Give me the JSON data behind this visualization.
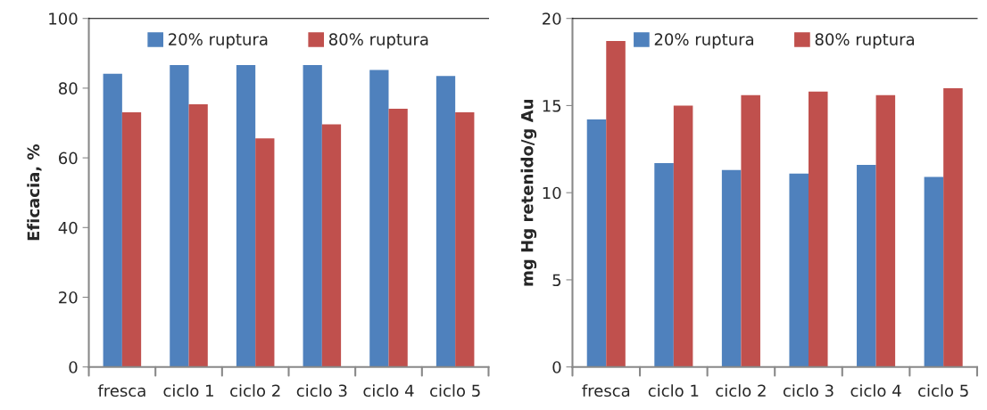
{
  "chart_data": [
    {
      "type": "bar",
      "ylabel": "Eficacia, %",
      "categories": [
        "fresca",
        "ciclo 1",
        "ciclo 2",
        "ciclo 3",
        "ciclo 4",
        "ciclo 5"
      ],
      "series": [
        {
          "name": "20% ruptura",
          "color": "#4f81bd",
          "values": [
            84.1,
            86.6,
            86.6,
            86.6,
            85.2,
            83.5
          ]
        },
        {
          "name": "80% ruptura",
          "color": "#c0504d",
          "values": [
            73.1,
            75.4,
            65.6,
            69.6,
            74.1,
            73.1
          ]
        }
      ],
      "ylim": [
        0,
        100
      ],
      "yticks": [
        0,
        20,
        40,
        60,
        80,
        100
      ],
      "legend": "top",
      "grid": false
    },
    {
      "type": "bar",
      "ylabel": "mg Hg retenido/g Au",
      "categories": [
        "fresca",
        "ciclo 1",
        "ciclo 2",
        "ciclo 3",
        "ciclo 4",
        "ciclo 5"
      ],
      "series": [
        {
          "name": "20% ruptura",
          "color": "#4f81bd",
          "values": [
            14.2,
            11.7,
            11.3,
            11.1,
            11.6,
            10.9
          ]
        },
        {
          "name": "80% ruptura",
          "color": "#c0504d",
          "values": [
            18.7,
            15.0,
            15.6,
            15.8,
            15.6,
            16.0
          ]
        }
      ],
      "ylim": [
        0,
        20
      ],
      "yticks": [
        0,
        5,
        10,
        15,
        20
      ],
      "legend": "top",
      "grid": false
    }
  ]
}
